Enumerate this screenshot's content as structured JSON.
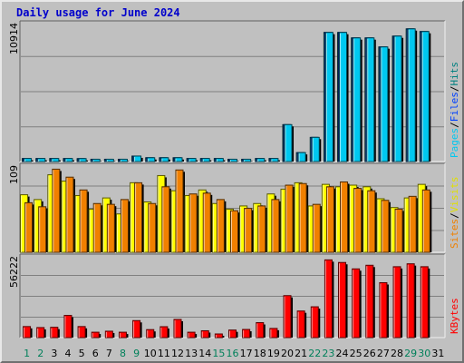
{
  "title": "Daily usage for June 2024",
  "chart_data": [
    {
      "type": "bar",
      "panel": "top",
      "labels": [
        "Pages",
        "Files",
        "Hits"
      ],
      "label_colors": [
        "#00c8f0",
        "#0040ff",
        "#008080"
      ],
      "separator": "/",
      "y_axis_max_label": "10914",
      "ylim": [
        0,
        10914
      ],
      "categories": [
        "1",
        "2",
        "3",
        "4",
        "5",
        "6",
        "7",
        "8",
        "9",
        "10",
        "11",
        "12",
        "13",
        "14",
        "15",
        "16",
        "17",
        "18",
        "19",
        "20",
        "21",
        "22",
        "23",
        "24",
        "25",
        "26",
        "27",
        "28",
        "29",
        "30",
        "31"
      ],
      "series": [
        {
          "name": "Hits",
          "color": "#008080",
          "values": [
            240,
            240,
            240,
            240,
            230,
            180,
            180,
            180,
            430,
            300,
            300,
            300,
            240,
            240,
            240,
            180,
            180,
            240,
            240,
            2900,
            700,
            1900,
            10150,
            10150,
            9720,
            9720,
            9010,
            9860,
            10430,
            10220,
            null
          ]
        },
        {
          "name": "Files",
          "color": "#0040ff",
          "values": [
            240,
            240,
            240,
            240,
            230,
            180,
            180,
            180,
            430,
            300,
            300,
            300,
            240,
            240,
            240,
            180,
            180,
            240,
            240,
            2900,
            700,
            1900,
            10150,
            10150,
            9720,
            9720,
            9010,
            9860,
            10430,
            10220,
            null
          ]
        },
        {
          "name": "Pages",
          "color": "#00c8f0",
          "values": [
            240,
            240,
            240,
            240,
            230,
            180,
            180,
            180,
            430,
            300,
            300,
            300,
            240,
            240,
            240,
            180,
            180,
            240,
            240,
            2900,
            700,
            1900,
            10150,
            10150,
            9720,
            9720,
            9010,
            9860,
            10430,
            10220,
            null
          ]
        }
      ]
    },
    {
      "type": "bar",
      "panel": "middle",
      "labels": [
        "Sites",
        "Visits"
      ],
      "label_colors": [
        "#f08000",
        "#e0e000"
      ],
      "separator": "/",
      "y_axis_max_label": "109",
      "ylim": [
        0,
        109
      ],
      "categories": [
        "1",
        "2",
        "3",
        "4",
        "5",
        "6",
        "7",
        "8",
        "9",
        "10",
        "11",
        "12",
        "13",
        "14",
        "15",
        "16",
        "17",
        "18",
        "19",
        "20",
        "21",
        "22",
        "23",
        "24",
        "25",
        "26",
        "27",
        "28",
        "29",
        "30",
        "31"
      ],
      "series": [
        {
          "name": "Visits",
          "color": "#ffff00",
          "values": [
            72,
            66,
            97,
            89,
            71,
            54,
            68,
            48,
            87,
            63,
            96,
            77,
            71,
            78,
            61,
            54,
            58,
            61,
            73,
            79,
            87,
            58,
            85,
            82,
            84,
            82,
            67,
            56,
            68,
            85,
            null
          ]
        },
        {
          "name": "Sites",
          "color": "#f08000",
          "values": [
            62,
            57,
            104,
            94,
            78,
            61,
            60,
            66,
            87,
            61,
            82,
            103,
            73,
            74,
            66,
            52,
            55,
            58,
            66,
            84,
            86,
            60,
            82,
            88,
            80,
            77,
            65,
            54,
            70,
            78,
            null
          ]
        }
      ]
    },
    {
      "type": "bar",
      "panel": "bottom",
      "labels": [
        "KBytes"
      ],
      "label_colors": [
        "#ff0000"
      ],
      "separator": "",
      "y_axis_max_label": "56222",
      "ylim": [
        0,
        56222
      ],
      "categories": [
        "1",
        "2",
        "3",
        "4",
        "5",
        "6",
        "7",
        "8",
        "9",
        "10",
        "11",
        "12",
        "13",
        "14",
        "15",
        "16",
        "17",
        "18",
        "19",
        "20",
        "21",
        "22",
        "23",
        "24",
        "25",
        "26",
        "27",
        "28",
        "29",
        "30",
        "31"
      ],
      "series": [
        {
          "name": "KBytes",
          "color": "#ff0000",
          "values": [
            7600,
            6900,
            7100,
            15300,
            7600,
            3700,
            4400,
            3700,
            11700,
            5500,
            7500,
            12500,
            3700,
            4700,
            2500,
            5200,
            5600,
            10300,
            6300,
            28900,
            18300,
            21200,
            53500,
            51700,
            47300,
            49800,
            37800,
            48800,
            50800,
            48800,
            null
          ]
        }
      ]
    }
  ],
  "x_tick_labels": [
    "1",
    "2",
    "3",
    "4",
    "5",
    "6",
    "7",
    "8",
    "9",
    "10",
    "11",
    "12",
    "13",
    "14",
    "15",
    "16",
    "17",
    "18",
    "19",
    "20",
    "21",
    "22",
    "23",
    "24",
    "25",
    "26",
    "27",
    "28",
    "29",
    "30",
    "31"
  ],
  "x_tick_colors": {
    "weekend_color": "#00805a",
    "weekday_color": "#000000",
    "weekends": [
      "1",
      "2",
      "8",
      "9",
      "15",
      "16",
      "22",
      "23",
      "29",
      "30"
    ]
  }
}
